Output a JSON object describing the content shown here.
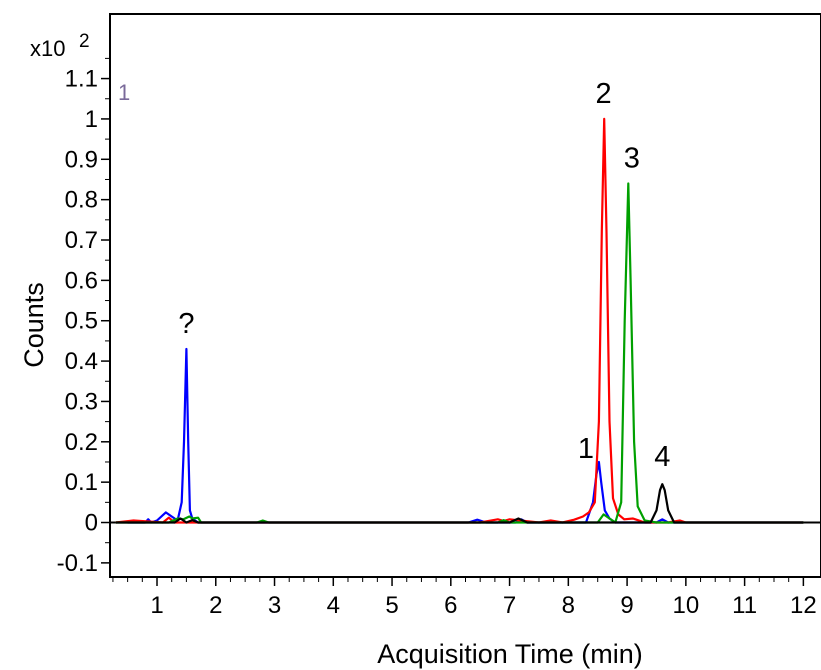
{
  "chart_data": {
    "type": "line",
    "title": "",
    "xlabel": "Acquisition Time (min)",
    "ylabel": "Counts",
    "y_multiplier": "x10",
    "y_multiplier_exp": "2",
    "corner_label": "1",
    "xlim": [
      0.2,
      12.3
    ],
    "ylim": [
      -0.135,
      1.26
    ],
    "x_ticks": [
      1,
      2,
      3,
      4,
      5,
      6,
      7,
      8,
      9,
      10,
      11,
      12
    ],
    "y_ticks": [
      -0.1,
      0,
      0.1,
      0.2,
      0.3,
      0.4,
      0.5,
      0.6,
      0.7,
      0.8,
      0.9,
      1,
      1.1
    ],
    "y_tick_labels": [
      "-0.1",
      "0",
      "0.1",
      "0.2",
      "0.3",
      "0.4",
      "0.5",
      "0.6",
      "0.7",
      "0.8",
      "0.9",
      "1",
      "1.1"
    ],
    "grid": false,
    "colors": {
      "blue": "#0000ff",
      "red": "#ff0000",
      "green": "#00a000",
      "black": "#000000"
    },
    "series": [
      {
        "color": "#0000ff",
        "x": [
          0.5,
          0.8,
          0.85,
          0.9,
          1.0,
          1.15,
          1.25,
          1.35,
          1.42,
          1.46,
          1.5,
          1.53,
          1.56,
          1.6,
          1.7,
          1.9,
          2.4,
          6.3,
          6.45,
          6.6,
          7.1,
          7.2,
          7.3,
          8.0,
          8.3,
          8.42,
          8.48,
          8.52,
          8.56,
          8.62,
          8.7,
          8.8,
          9.0,
          9.5,
          9.6,
          9.7,
          12.0
        ],
        "y": [
          0.0,
          0.0,
          0.008,
          0.0,
          0.005,
          0.025,
          0.015,
          0.005,
          0.05,
          0.2,
          0.43,
          0.2,
          0.03,
          0.01,
          0.0,
          0.0,
          0.0,
          0.0,
          0.007,
          0.0,
          0.0,
          0.008,
          0.0,
          0.0,
          0.0,
          0.05,
          0.12,
          0.15,
          0.1,
          0.03,
          0.01,
          0.0,
          0.0,
          0.0,
          0.008,
          0.0,
          0.0
        ]
      },
      {
        "color": "#ff0000",
        "x": [
          0.3,
          0.6,
          1.1,
          1.2,
          1.3,
          1.5,
          2.0,
          6.5,
          6.8,
          6.9,
          7.0,
          7.5,
          7.7,
          7.9,
          8.1,
          8.25,
          8.35,
          8.45,
          8.52,
          8.57,
          8.61,
          8.65,
          8.7,
          8.76,
          8.85,
          8.95,
          9.1,
          9.3,
          9.7,
          9.9,
          10.0,
          12.0
        ],
        "y": [
          0.0,
          0.005,
          0.0,
          0.012,
          0.0,
          0.0,
          0.0,
          0.0,
          0.008,
          0.004,
          0.008,
          0.0,
          0.005,
          0.0,
          0.007,
          0.015,
          0.025,
          0.05,
          0.25,
          0.72,
          1.0,
          0.72,
          0.25,
          0.06,
          0.02,
          0.008,
          0.01,
          0.0,
          0.0,
          0.005,
          0.0,
          0.0
        ]
      },
      {
        "color": "#00a000",
        "x": [
          0.3,
          1.2,
          1.35,
          1.45,
          1.55,
          1.6,
          1.7,
          1.75,
          2.0,
          2.7,
          2.8,
          2.9,
          6.8,
          6.9,
          7.0,
          8.5,
          8.6,
          8.7,
          8.8,
          8.9,
          8.96,
          9.02,
          9.06,
          9.12,
          9.18,
          9.3,
          9.5,
          12.0
        ],
        "y": [
          0.0,
          0.0,
          0.01,
          0.008,
          0.015,
          0.01,
          0.012,
          0.0,
          0.0,
          0.0,
          0.005,
          0.0,
          0.0,
          0.006,
          0.0,
          0.0,
          0.02,
          0.01,
          0.0,
          0.05,
          0.5,
          0.84,
          0.6,
          0.2,
          0.04,
          0.005,
          0.0,
          0.0
        ]
      },
      {
        "color": "#000000",
        "x": [
          0.3,
          1.3,
          1.4,
          1.5,
          1.6,
          1.7,
          7.0,
          7.15,
          7.3,
          8.7,
          9.4,
          9.5,
          9.56,
          9.6,
          9.64,
          9.7,
          9.8,
          12.0
        ],
        "y": [
          0.0,
          0.0,
          0.01,
          0.0,
          0.006,
          0.0,
          0.0,
          0.01,
          0.0,
          0.0,
          0.0,
          0.03,
          0.08,
          0.095,
          0.08,
          0.03,
          0.0,
          0.0
        ]
      }
    ],
    "annotations": [
      {
        "text": "?",
        "x": 1.5,
        "y": 0.47
      },
      {
        "text": "1",
        "x": 8.3,
        "y": 0.16
      },
      {
        "text": "2",
        "x": 8.6,
        "y": 1.04
      },
      {
        "text": "3",
        "x": 9.08,
        "y": 0.88
      },
      {
        "text": "4",
        "x": 9.6,
        "y": 0.14
      }
    ]
  }
}
